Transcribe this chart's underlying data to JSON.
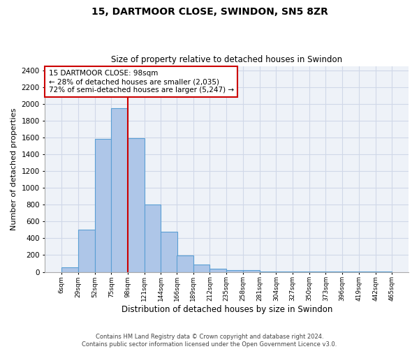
{
  "title": "15, DARTMOOR CLOSE, SWINDON, SN5 8ZR",
  "subtitle": "Size of property relative to detached houses in Swindon",
  "xlabel": "Distribution of detached houses by size in Swindon",
  "ylabel": "Number of detached properties",
  "footer_line1": "Contains HM Land Registry data © Crown copyright and database right 2024.",
  "footer_line2": "Contains public sector information licensed under the Open Government Licence v3.0.",
  "annotation_line1": "15 DARTMOOR CLOSE: 98sqm",
  "annotation_line2": "← 28% of detached houses are smaller (2,035)",
  "annotation_line3": "72% of semi-detached houses are larger (5,247) →",
  "property_size": 98,
  "bar_left_edges": [
    6,
    29,
    52,
    75,
    98,
    121,
    144,
    166,
    189,
    212,
    235,
    258,
    281,
    304,
    327,
    350,
    373,
    396,
    419,
    442
  ],
  "bar_heights": [
    55,
    500,
    1580,
    1950,
    1590,
    800,
    475,
    195,
    90,
    35,
    25,
    20,
    5,
    5,
    5,
    5,
    5,
    5,
    5,
    5
  ],
  "bin_width": 23,
  "bar_color": "#aec6e8",
  "bar_edge_color": "#5a9fd4",
  "vline_color": "#cc0000",
  "annotation_box_color": "#cc0000",
  "grid_color": "#d0d8e8",
  "bg_color": "#eef2f8",
  "ylim": [
    0,
    2450
  ],
  "yticks": [
    0,
    200,
    400,
    600,
    800,
    1000,
    1200,
    1400,
    1600,
    1800,
    2000,
    2200,
    2400
  ],
  "xtick_labels": [
    "6sqm",
    "29sqm",
    "52sqm",
    "75sqm",
    "98sqm",
    "121sqm",
    "144sqm",
    "166sqm",
    "189sqm",
    "212sqm",
    "235sqm",
    "258sqm",
    "281sqm",
    "304sqm",
    "327sqm",
    "350sqm",
    "373sqm",
    "396sqm",
    "419sqm",
    "442sqm",
    "465sqm"
  ]
}
